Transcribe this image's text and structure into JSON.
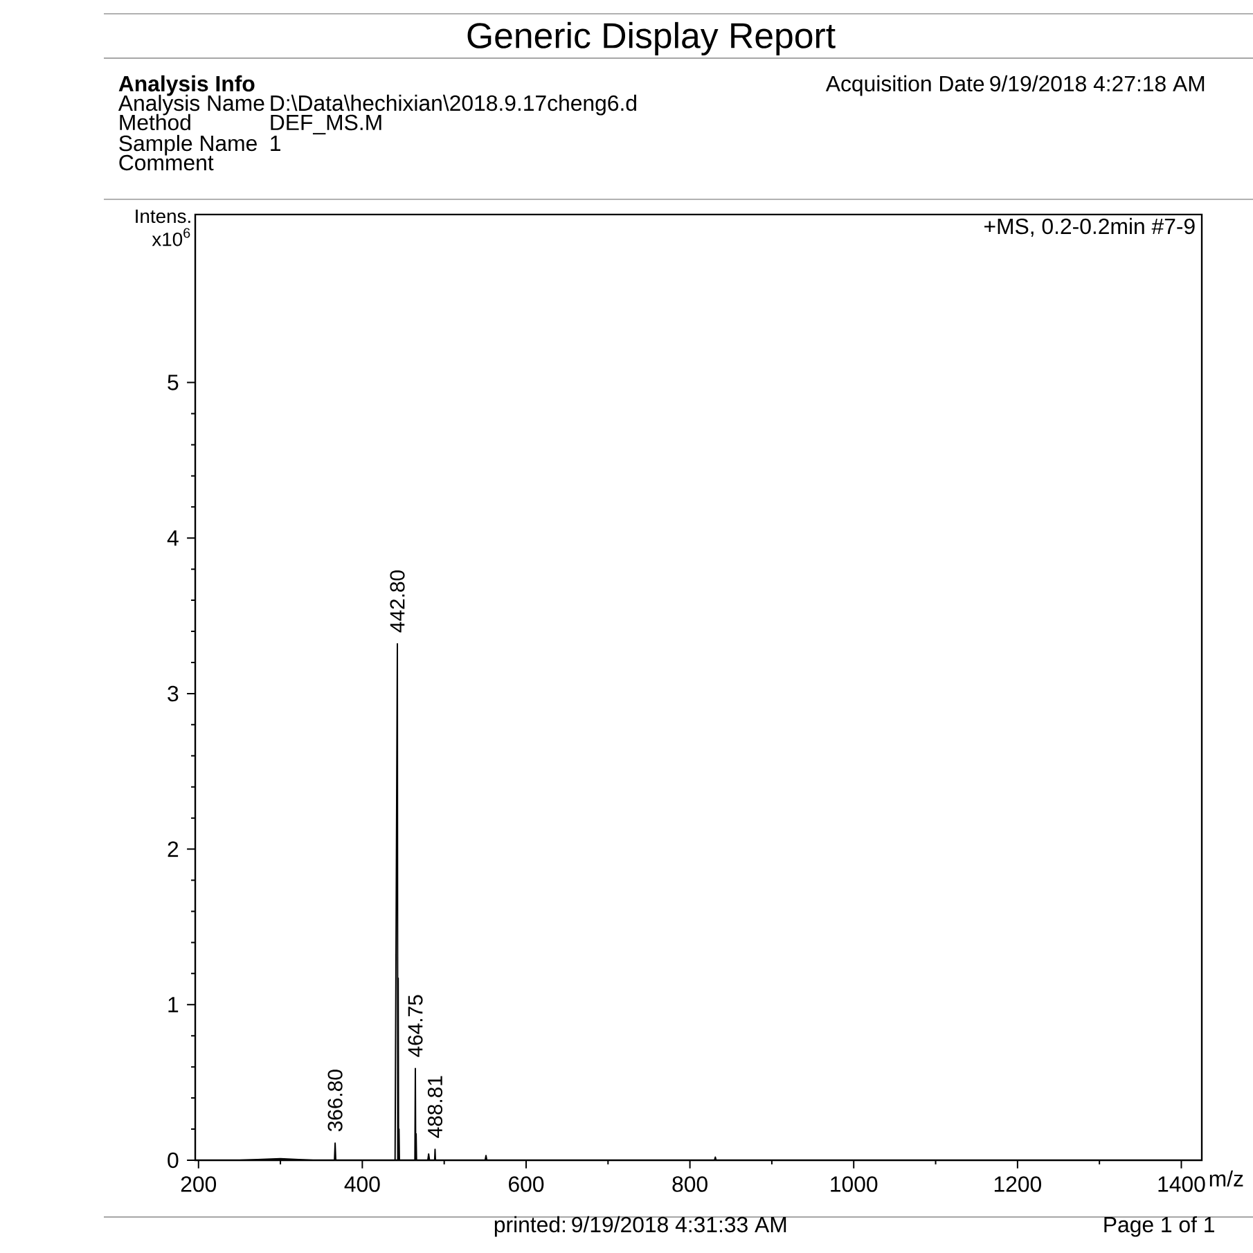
{
  "chart_data": {
    "type": "line",
    "title": "Generic Display Report",
    "ylabel": "Intens. x10$^{6}$",
    "xlabel": "m/z",
    "xlim": [
      196,
      1425
    ],
    "ylim": [
      0,
      6.08
    ],
    "xticks": [
      200,
      400,
      600,
      800,
      1000,
      1200,
      1400
    ],
    "yticks": [
      0,
      1,
      2,
      3,
      4,
      5
    ],
    "marker": "none",
    "line_style": "solid",
    "series": [
      {
        "color": "#000000",
        "x": [
          196,
          250,
          300,
          340,
          366,
          366.8,
          367.6,
          400,
          440,
          442.8,
          443.3,
          443.8,
          444.3,
          444.8,
          445.3,
          464.2,
          464.75,
          465.2,
          465.7,
          466.2,
          480,
          481,
          482,
          488.3,
          488.81,
          489.3,
          500,
          550,
          551,
          552,
          700,
          830,
          831,
          832,
          1000,
          1425
        ],
        "values": [
          0,
          0,
          0.01,
          0,
          0,
          0.11,
          0,
          0,
          0,
          3.32,
          0,
          1.17,
          0,
          0.2,
          0,
          0,
          0.59,
          0,
          0.17,
          0,
          0,
          0.04,
          0,
          0,
          0.07,
          0,
          0,
          0,
          0.03,
          0,
          0,
          0,
          0.02,
          0,
          0,
          0
        ]
      }
    ],
    "annotations": [
      "Analysis Info",
      "Analysis Name",
      "D:\\Data\\hechixian\\2018.9.17cheng6.d",
      "Method",
      "DEF_MS.M",
      "Sample Name",
      "1",
      "Comment",
      "Acquisition Date",
      "9/19/2018 4:27:18 AM",
      "+MS, 0.2-0.2min #7-9",
      "printed:",
      "9/19/2018 4:31:33 AM",
      "Page 1 of 1",
      {
        "text": "442.80",
        "x": 442.8,
        "y": 3.32
      },
      {
        "text": "464.75",
        "x": 464.75,
        "y": 0.59
      },
      {
        "text": "366.80",
        "x": 366.8,
        "y": 0.11
      },
      {
        "text": "488.81",
        "x": 488.81,
        "y": 0.07
      }
    ]
  }
}
